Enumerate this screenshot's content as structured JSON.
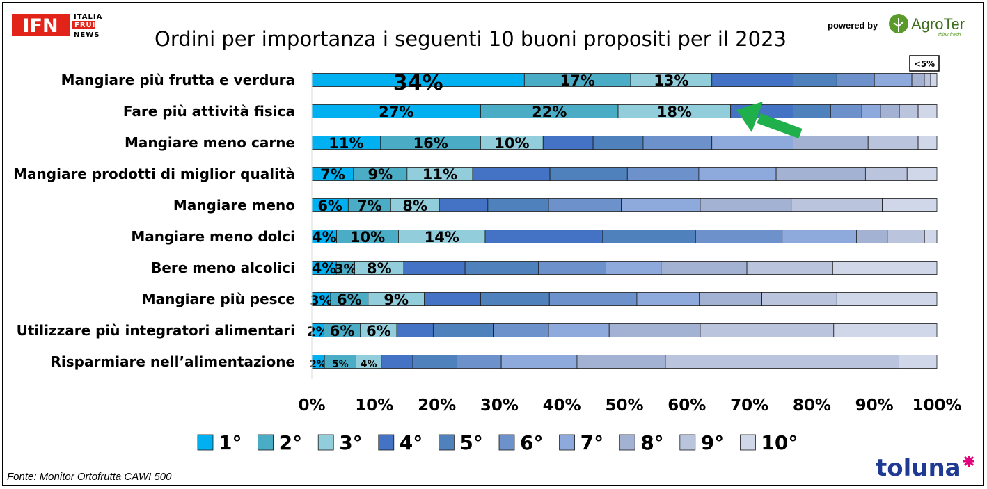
{
  "logos": {
    "ifn_mark": "IFN",
    "ifn_lines": [
      "ITALIA",
      "FRUIT",
      "NEWS"
    ],
    "powered_by": "powered by",
    "agroter": "AgroTer",
    "agroter_tagline": "think fresh",
    "toluna": "toluna"
  },
  "source_note": "Fonte: Monitor Ortofrutta CAWI 500",
  "small_note": "<5%",
  "colors": {
    "ranks": [
      "#00B0F0",
      "#4BACC6",
      "#92CDDC",
      "#4472C4",
      "#4F81BD",
      "#6C91CB",
      "#8EA9DB",
      "#A3B1D2",
      "#BAC4DD",
      "#D0D7E8"
    ],
    "arrow": "#1FAF4B",
    "ifn_red": "#E2231A",
    "agroter_green": "#5A9A2A",
    "toluna_blue": "#1F3A93",
    "toluna_star": "#E5007E"
  },
  "chart_data": {
    "type": "bar",
    "orientation": "horizontal",
    "stacked": "100%",
    "title": "Ordini per importanza i seguenti 10 buoni propositi per il 2023",
    "categories": [
      "Mangiare più frutta e verdura",
      "Fare più attività fisica",
      "Mangiare meno carne",
      "Mangiare prodotti di miglior qualità",
      "Mangiare meno",
      "Mangiare meno dolci",
      "Bere meno alcolici",
      "Mangiare più pesce",
      "Utilizzare più integratori alimentari",
      "Risparmiare nell’alimentazione"
    ],
    "series": [
      {
        "name": "1°",
        "values": [
          34,
          27,
          11,
          7,
          6,
          4,
          4,
          3,
          2,
          2
        ]
      },
      {
        "name": "2°",
        "values": [
          17,
          22,
          16,
          9,
          7,
          10,
          3,
          6,
          6,
          5
        ]
      },
      {
        "name": "3°",
        "values": [
          13,
          18,
          10,
          11,
          8,
          14,
          8,
          9,
          6,
          4
        ]
      },
      {
        "name": "4°",
        "values": [
          13,
          10,
          8,
          13,
          8,
          19,
          10,
          9,
          6,
          5
        ]
      },
      {
        "name": "5°",
        "values": [
          7,
          6,
          8,
          13,
          10,
          15,
          12,
          11,
          10,
          7
        ]
      },
      {
        "name": "6°",
        "values": [
          6,
          5,
          11,
          12,
          12,
          14,
          11,
          14,
          9,
          7
        ]
      },
      {
        "name": "7°",
        "values": [
          6,
          3,
          13,
          13,
          13,
          12,
          9,
          10,
          10,
          12
        ]
      },
      {
        "name": "8°",
        "values": [
          2,
          3,
          12,
          15,
          15,
          5,
          14,
          10,
          15,
          14
        ]
      },
      {
        "name": "9°",
        "values": [
          1,
          3,
          8,
          7,
          15,
          6,
          14,
          12,
          22,
          37
        ]
      },
      {
        "name": "10°",
        "values": [
          1,
          3,
          3,
          5,
          9,
          2,
          17,
          16,
          17,
          6
        ]
      }
    ],
    "data_labels": [
      [
        "34%",
        "17%",
        "13%"
      ],
      [
        "27%",
        "22%",
        "18%"
      ],
      [
        "11%",
        "16%",
        "10%"
      ],
      [
        "7%",
        "9%",
        "11%"
      ],
      [
        "6%",
        "7%",
        "8%"
      ],
      [
        "4%",
        "10%",
        "14%"
      ],
      [
        "4%",
        "3%",
        "8%"
      ],
      [
        "3%",
        "6%",
        "9%"
      ],
      [
        "2%",
        "6%",
        "6%"
      ],
      [
        "2%",
        "5%",
        "4%"
      ]
    ],
    "x_ticks": [
      "0%",
      "10%",
      "20%",
      "30%",
      "40%",
      "50%",
      "60%",
      "70%",
      "80%",
      "90%",
      "100%"
    ],
    "xlim": [
      0,
      100
    ],
    "grid": false,
    "legend_position": "bottom"
  }
}
